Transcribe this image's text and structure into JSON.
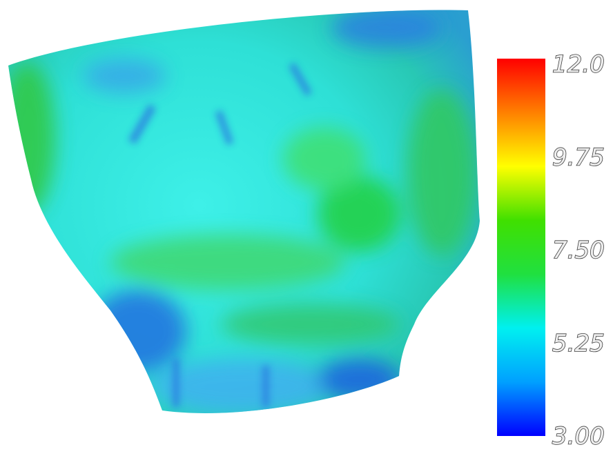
{
  "colorbar": {
    "range": [
      3,
      12
    ],
    "ticks": [
      {
        "value": 12,
        "label": "12.0"
      },
      9.75,
      {
        "value": 7.5,
        "label": "7.50"
      },
      5.25,
      {
        "value": 3,
        "label": "3.00"
      }
    ],
    "colors": [
      "#0000ff",
      "#00a0ff",
      "#00f0f0",
      "#20e040",
      "#40e000",
      "#ffff00",
      "#ff8000",
      "#ff0000"
    ]
  }
}
